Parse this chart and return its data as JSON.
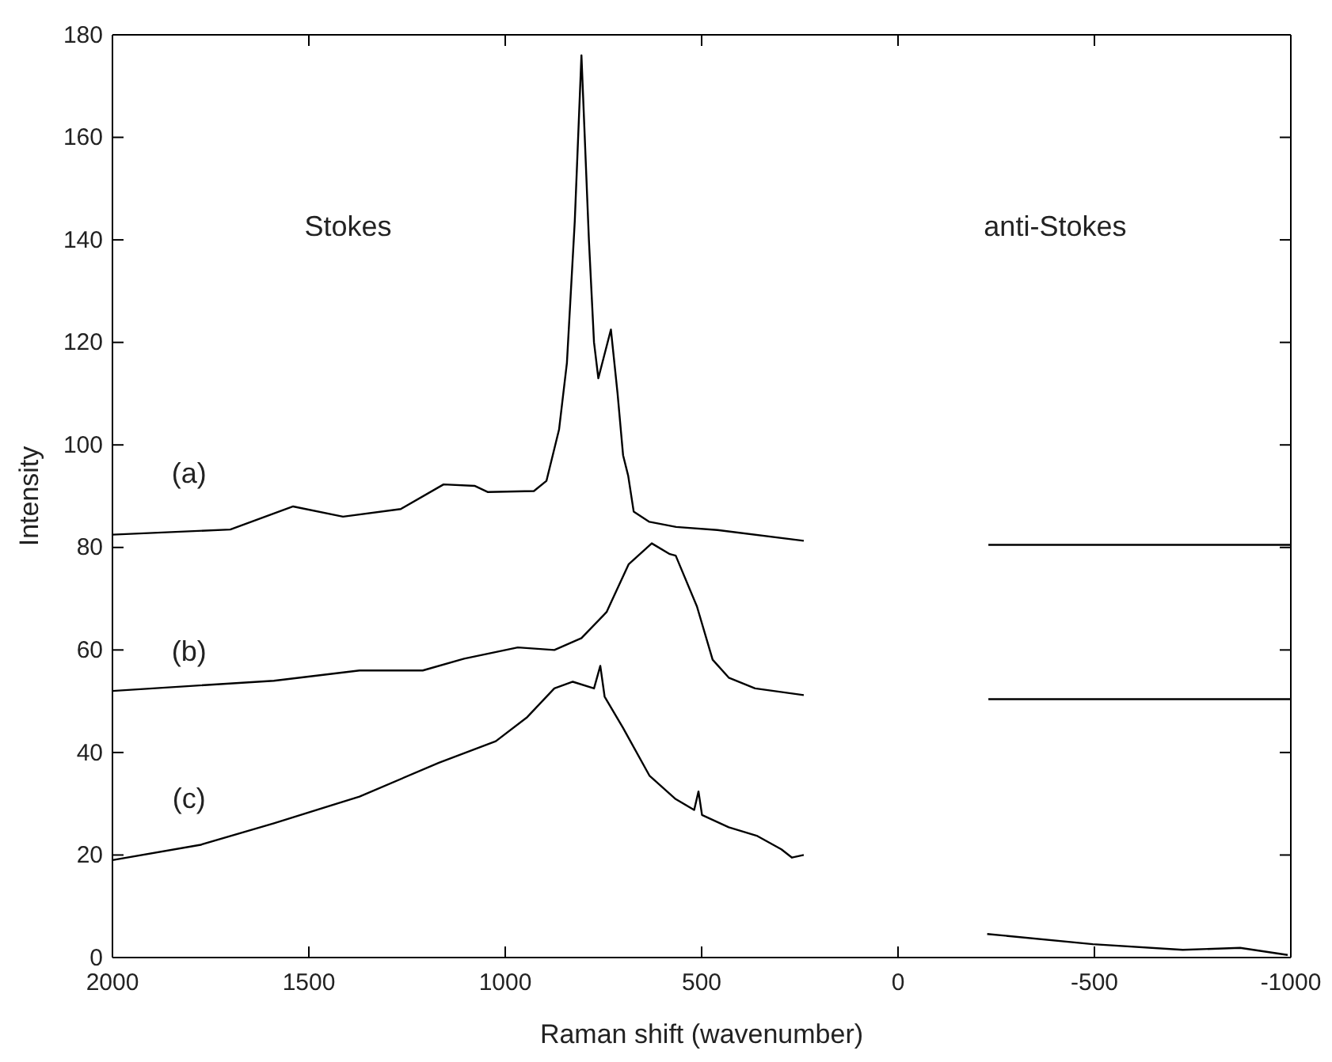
{
  "chart_data": {
    "type": "line",
    "xlabel": "Raman shift (wavenumber)",
    "ylabel": "Intensity",
    "xlim": [
      2000,
      -1000
    ],
    "xticks": [
      2000,
      1500,
      1000,
      500,
      0,
      -500,
      -1000
    ],
    "ylim": [
      0,
      180
    ],
    "yticks": [
      0,
      20,
      40,
      60,
      80,
      100,
      120,
      140,
      160,
      180
    ],
    "grid": false,
    "marker": "none",
    "line_style": "solid",
    "annotations": [
      "Stokes",
      "anti-Stokes",
      "(a)",
      "(b)",
      "(c)"
    ],
    "series": [
      {
        "color": "#000000",
        "x": [
          2000,
          1700,
          1540,
          1413,
          1266,
          1157,
          1077,
          1044,
          927,
          895,
          863,
          843,
          823,
          806,
          787,
          774,
          763,
          731,
          714,
          700,
          687,
          673,
          633,
          565,
          460,
          240,
          0,
          -230,
          -1000
        ],
        "values": [
          82.5,
          83.5,
          88,
          86,
          87.5,
          92.3,
          92,
          90.8,
          91,
          93,
          103,
          116,
          143.6,
          176,
          140,
          120,
          113,
          122.5,
          110,
          98,
          94,
          87,
          85,
          84,
          83.4,
          81.3,
          null,
          80.5,
          80.5
        ]
      },
      {
        "color": "#000000",
        "x": [
          2000,
          1589,
          1371,
          1210,
          1105,
          968,
          875,
          806,
          742,
          686,
          627,
          581,
          566,
          512,
          472,
          431,
          364,
          240,
          0,
          -230,
          -1000
        ],
        "values": [
          52,
          54,
          56,
          56,
          58.3,
          60.5,
          60,
          62.3,
          67.4,
          76.7,
          80.8,
          78.7,
          78.4,
          68.5,
          58.1,
          54.6,
          52.5,
          51.2,
          null,
          50.4,
          50.4
        ]
      },
      {
        "color": "#000000",
        "x": [
          2000,
          1775,
          1589,
          1371,
          1169,
          1024,
          944,
          875,
          828,
          774,
          758,
          747,
          700,
          633,
          566,
          519,
          508,
          499,
          431,
          358,
          297,
          270,
          240,
          0,
          -227,
          -496,
          -725,
          -871,
          -992
        ],
        "values": [
          19,
          22,
          26.2,
          31.4,
          38,
          42.2,
          46.9,
          52.5,
          53.8,
          52.5,
          56.9,
          50.9,
          44.8,
          35.5,
          30.9,
          28.8,
          32.4,
          27.8,
          25.4,
          23.7,
          21.1,
          19.5,
          20,
          null,
          4.6,
          2.6,
          1.5,
          1.9,
          0.5
        ]
      }
    ]
  }
}
